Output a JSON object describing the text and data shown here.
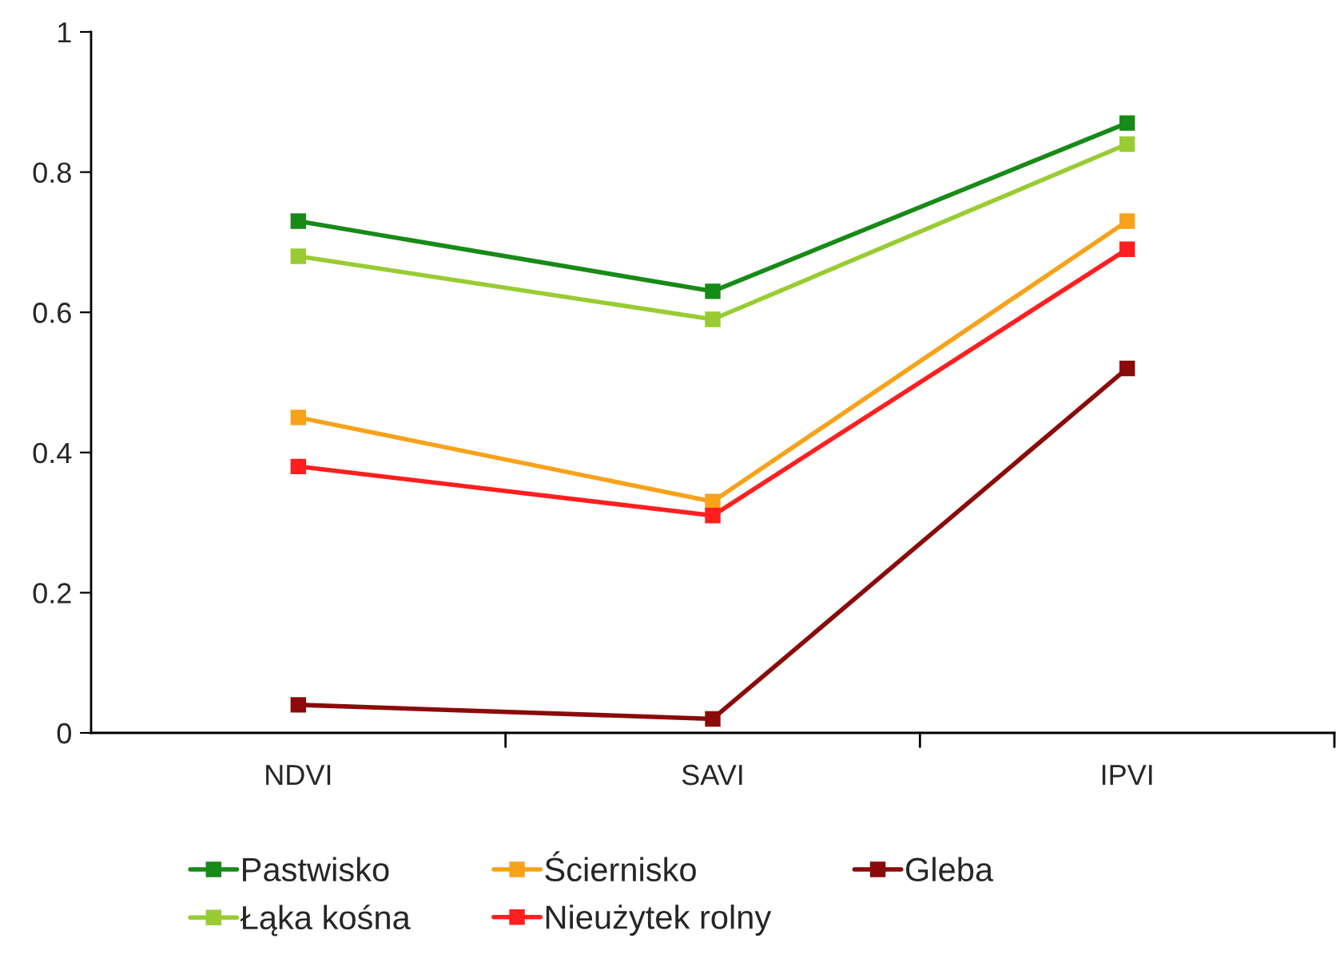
{
  "chart_data": {
    "type": "line",
    "categories": [
      "NDVI",
      "SAVI",
      "IPVI"
    ],
    "series": [
      {
        "name": "Pastwisko",
        "color": "#178a17",
        "values": [
          0.73,
          0.63,
          0.87
        ]
      },
      {
        "name": "Łąka kośna",
        "color": "#99cc33",
        "values": [
          0.68,
          0.59,
          0.84
        ]
      },
      {
        "name": "Ściernisko",
        "color": "#f7a21b",
        "values": [
          0.45,
          0.33,
          0.73
        ]
      },
      {
        "name": "Nieużytek rolny",
        "color": "#ff1f1f",
        "values": [
          0.38,
          0.31,
          0.69
        ]
      },
      {
        "name": "Gleba",
        "color": "#8b0a0a",
        "values": [
          0.04,
          0.02,
          0.52
        ]
      }
    ],
    "ylim": [
      0,
      1
    ],
    "yticks": [
      0,
      0.2,
      0.4,
      0.6,
      0.8,
      1
    ],
    "marker": "square",
    "line_style": "solid",
    "grid": false,
    "legend": "bottom"
  }
}
